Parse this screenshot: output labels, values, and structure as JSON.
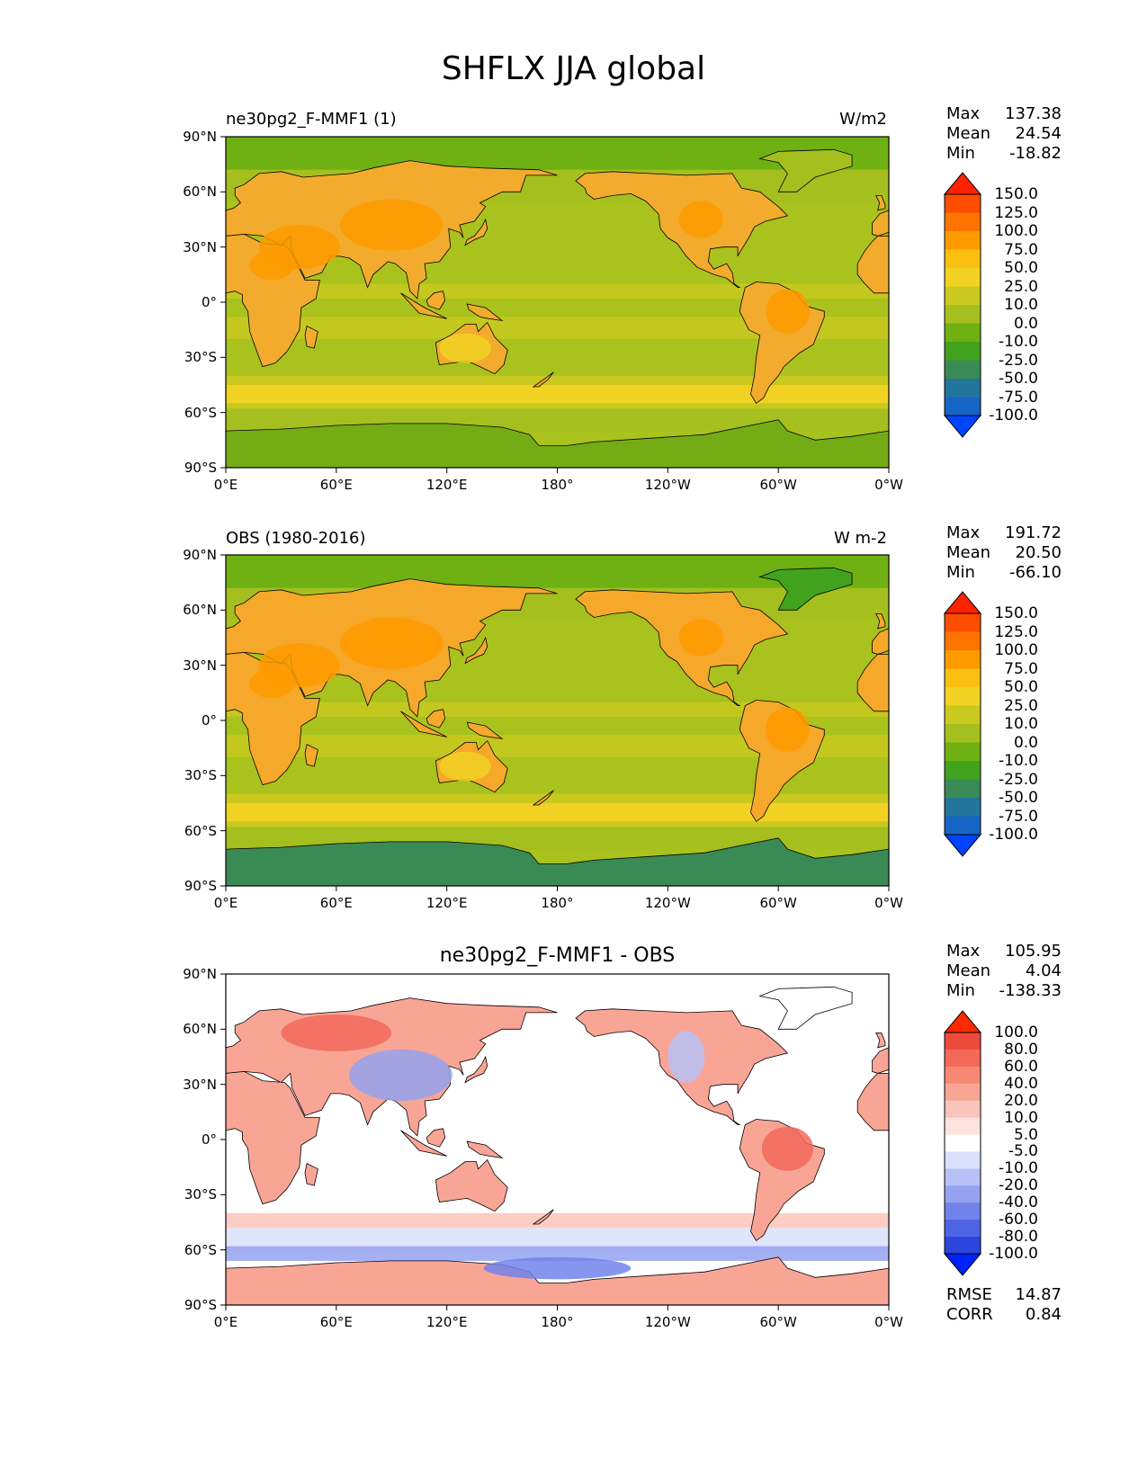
{
  "figure": {
    "title": "SHFLX JJA global"
  },
  "axes": {
    "lat_ticks": [
      "90°N",
      "60°N",
      "30°N",
      "0°",
      "30°S",
      "60°S",
      "90°S"
    ],
    "lon_ticks": [
      "0°E",
      "60°E",
      "120°E",
      "180°",
      "120°W",
      "60°W",
      "0°W"
    ]
  },
  "chart_data": [
    {
      "type": "heatmap",
      "title": "ne30pg2_F-MMF1 (1)",
      "units": "W/m2",
      "stats": {
        "max_label": "Max",
        "max": "137.38",
        "mean_label": "Mean",
        "mean": "24.54",
        "min_label": "Min",
        "min": "-18.82"
      },
      "colorbar": {
        "levels": [
          "150.0",
          "125.0",
          "100.0",
          "75.0",
          "50.0",
          "25.0",
          "10.0",
          "0.0",
          "-10.0",
          "-25.0",
          "-50.0",
          "-75.0",
          "-100.0"
        ],
        "colors": [
          "#ff2200",
          "#ff4d00",
          "#ff7300",
          "#ff9a00",
          "#fbbf12",
          "#f1d223",
          "#c9c920",
          "#a5bf1e",
          "#6fb012",
          "#41a21e",
          "#3a8a55",
          "#23759b",
          "#1565c4",
          "#0044ff"
        ]
      },
      "lat_range": [
        -90,
        90
      ],
      "lon_range": [
        0,
        360
      ],
      "ocean_color": "#a9c21d",
      "land_color": "#f2ab2c",
      "south_polar_color": "#74ac15"
    },
    {
      "type": "heatmap",
      "title": "OBS (1980-2016)",
      "units": "W m-2",
      "stats": {
        "max_label": "Max",
        "max": "191.72",
        "mean_label": "Mean",
        "mean": "20.50",
        "min_label": "Min",
        "min": "-66.10"
      },
      "colorbar": {
        "levels": [
          "150.0",
          "125.0",
          "100.0",
          "75.0",
          "50.0",
          "25.0",
          "10.0",
          "0.0",
          "-10.0",
          "-25.0",
          "-50.0",
          "-75.0",
          "-100.0"
        ],
        "colors": [
          "#ff2200",
          "#ff4d00",
          "#ff7300",
          "#ff9a00",
          "#fbbf12",
          "#f1d223",
          "#c9c920",
          "#a5bf1e",
          "#6fb012",
          "#41a21e",
          "#3a8a55",
          "#23759b",
          "#1565c4",
          "#0044ff"
        ]
      },
      "lat_range": [
        -90,
        90
      ],
      "lon_range": [
        0,
        360
      ],
      "ocean_color": "#a9c21d",
      "land_color": "#f5a82a",
      "south_polar_color": "#3a8a55"
    },
    {
      "type": "heatmap",
      "title": "ne30pg2_F-MMF1 - OBS",
      "units": "",
      "stats": {
        "max_label": "Max",
        "max": "105.95",
        "mean_label": "Mean",
        "mean": "4.04",
        "min_label": "Min",
        "min": "-138.33"
      },
      "colorbar": {
        "levels": [
          "100.0",
          "80.0",
          "60.0",
          "40.0",
          "20.0",
          "10.0",
          "5.0",
          "-5.0",
          "-10.0",
          "-20.0",
          "-40.0",
          "-60.0",
          "-80.0",
          "-100.0"
        ],
        "colors": [
          "#ff2a00",
          "#ee4a3c",
          "#f3695a",
          "#f78874",
          "#f9a596",
          "#fbc4ba",
          "#fde3de",
          "#ffffff",
          "#dbe0fb",
          "#b8c1f6",
          "#95a2f0",
          "#7183ea",
          "#4e64e4",
          "#2b45dd",
          "#0022ff"
        ]
      },
      "error_stats": {
        "rmse_label": "RMSE",
        "rmse": "14.87",
        "corr_label": "CORR",
        "corr": "0.84"
      },
      "lat_range": [
        -90,
        90
      ],
      "lon_range": [
        0,
        360
      ],
      "ocean_color": "#ffffff",
      "land_color": "#f9a596",
      "south_polar_color": "#f9a596"
    }
  ]
}
